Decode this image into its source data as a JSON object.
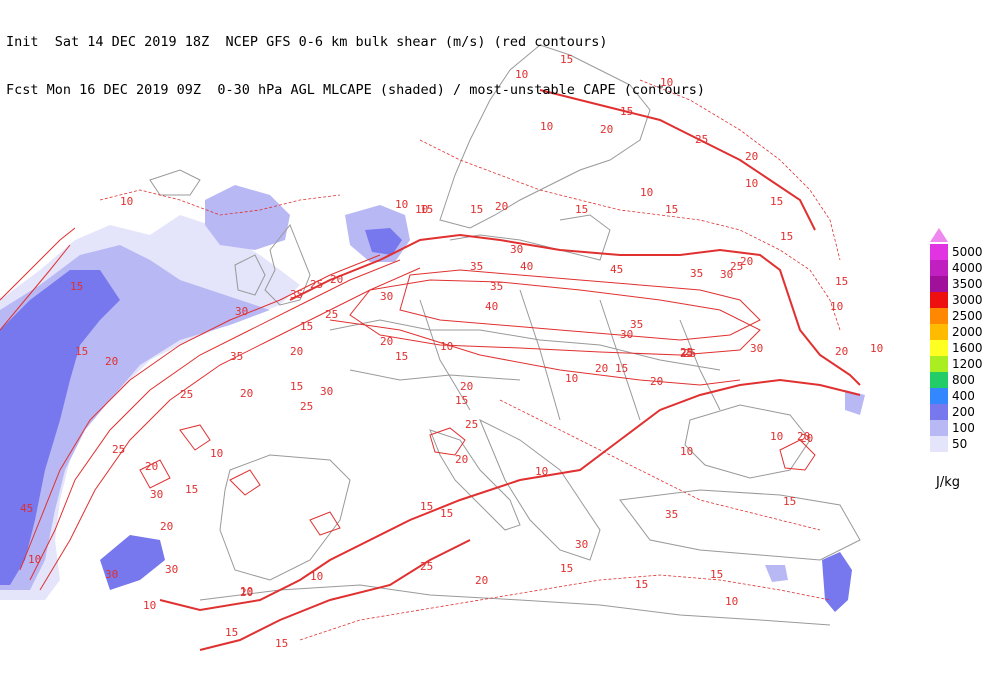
{
  "header": {
    "line1": "Init  Sat 14 DEC 2019 18Z  NCEP GFS 0-6 km bulk shear (m/s) (red contours)",
    "line2": "Fcst Mon 16 DEC 2019 09Z  0-30 hPa AGL MLCAPE (shaded) / most-unstable CAPE (contours)"
  },
  "legend": {
    "units": "J/kg",
    "levels": [
      {
        "label": "5000",
        "color": "#e233e2"
      },
      {
        "label": "4000",
        "color": "#c020c0"
      },
      {
        "label": "3500",
        "color": "#a0109a"
      },
      {
        "label": "3000",
        "color": "#ee1010"
      },
      {
        "label": "2500",
        "color": "#ff8800"
      },
      {
        "label": "2000",
        "color": "#ffbb00"
      },
      {
        "label": "1600",
        "color": "#ffff22"
      },
      {
        "label": "1200",
        "color": "#aaee22"
      },
      {
        "label": "800",
        "color": "#22cc66"
      },
      {
        "label": "400",
        "color": "#3388ff"
      },
      {
        "label": "200",
        "color": "#7777ee"
      },
      {
        "label": "100",
        "color": "#b8b8f4"
      },
      {
        "label": "50",
        "color": "#e4e4fa"
      }
    ]
  },
  "contour_labels": [
    {
      "text": "15"
    },
    {
      "text": "10"
    },
    {
      "text": "10"
    },
    {
      "text": "20"
    },
    {
      "text": "25"
    },
    {
      "text": "15"
    },
    {
      "text": "20"
    },
    {
      "text": "10"
    },
    {
      "text": "15"
    },
    {
      "text": "10"
    },
    {
      "text": "20"
    },
    {
      "text": "10"
    },
    {
      "text": "15"
    },
    {
      "text": "15"
    },
    {
      "text": "10"
    },
    {
      "text": "15"
    },
    {
      "text": "10"
    },
    {
      "text": "15"
    },
    {
      "text": "10"
    },
    {
      "text": "15"
    },
    {
      "text": "20"
    },
    {
      "text": "25"
    },
    {
      "text": "30"
    },
    {
      "text": "35"
    },
    {
      "text": "40"
    },
    {
      "text": "45"
    },
    {
      "text": "35"
    },
    {
      "text": "30"
    },
    {
      "text": "25"
    },
    {
      "text": "20"
    },
    {
      "text": "15"
    },
    {
      "text": "10"
    },
    {
      "text": "10"
    },
    {
      "text": "15"
    },
    {
      "text": "20"
    },
    {
      "text": "25"
    },
    {
      "text": "30"
    },
    {
      "text": "35"
    },
    {
      "text": "40"
    },
    {
      "text": "35"
    },
    {
      "text": "30"
    },
    {
      "text": "25"
    },
    {
      "text": "20"
    },
    {
      "text": "15"
    },
    {
      "text": "20"
    },
    {
      "text": "15"
    },
    {
      "text": "10"
    },
    {
      "text": "20"
    },
    {
      "text": "15"
    },
    {
      "text": "10"
    },
    {
      "text": "15"
    },
    {
      "text": "20"
    },
    {
      "text": "25"
    },
    {
      "text": "30"
    },
    {
      "text": "35"
    },
    {
      "text": "25"
    },
    {
      "text": "20"
    },
    {
      "text": "25"
    },
    {
      "text": "20"
    },
    {
      "text": "15"
    },
    {
      "text": "30"
    },
    {
      "text": "35"
    },
    {
      "text": "25"
    },
    {
      "text": "20"
    },
    {
      "text": "15"
    },
    {
      "text": "10"
    },
    {
      "text": "20"
    },
    {
      "text": "15"
    },
    {
      "text": "25"
    },
    {
      "text": "15"
    },
    {
      "text": "10"
    },
    {
      "text": "10"
    },
    {
      "text": "15"
    },
    {
      "text": "10"
    },
    {
      "text": "15"
    },
    {
      "text": "20"
    },
    {
      "text": "15"
    },
    {
      "text": "10"
    },
    {
      "text": "20"
    },
    {
      "text": "25"
    },
    {
      "text": "30"
    },
    {
      "text": "20"
    },
    {
      "text": "30"
    },
    {
      "text": "15"
    },
    {
      "text": "35"
    },
    {
      "text": "10"
    },
    {
      "text": "15"
    },
    {
      "text": "45"
    },
    {
      "text": "30"
    },
    {
      "text": "10"
    },
    {
      "text": "30"
    },
    {
      "text": "20"
    },
    {
      "text": "30"
    },
    {
      "text": "25"
    },
    {
      "text": "20"
    },
    {
      "text": "15"
    },
    {
      "text": "10"
    },
    {
      "text": "10"
    },
    {
      "text": "20"
    },
    {
      "text": "15"
    }
  ]
}
